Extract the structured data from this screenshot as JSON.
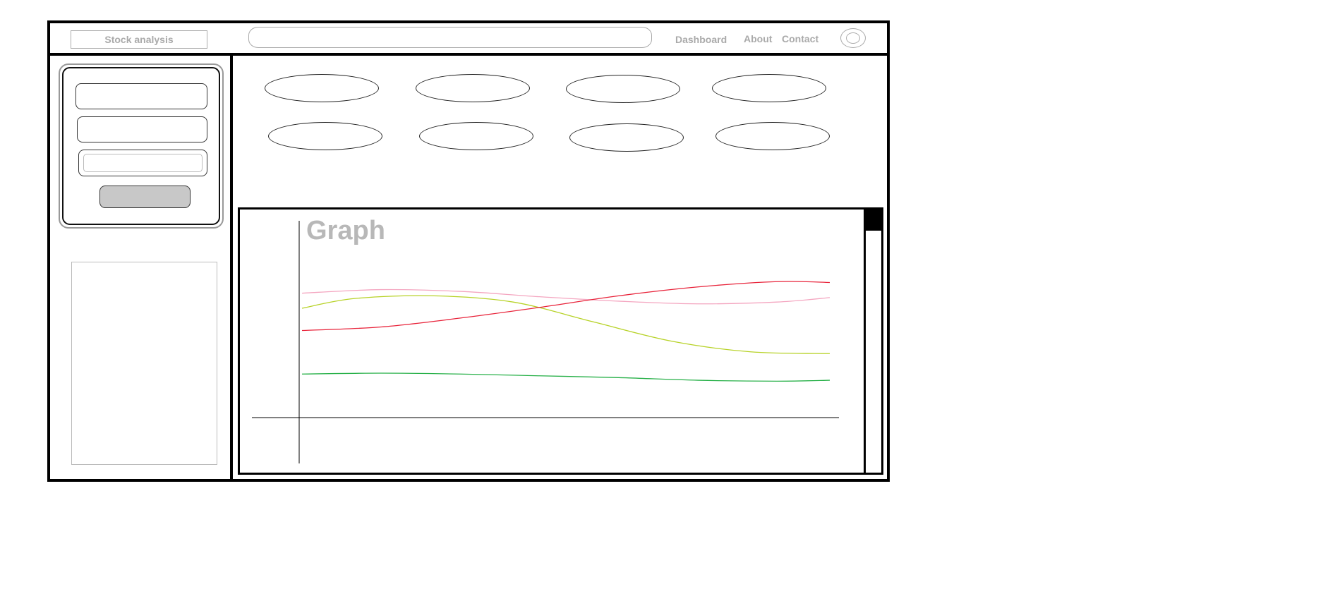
{
  "header": {
    "app_title": "Stock analysis",
    "nav": [
      "Dashboard",
      "About",
      "Contact"
    ]
  },
  "graph": {
    "title": "Graph"
  },
  "chart_data": {
    "type": "line",
    "title": "Graph",
    "xlabel": "",
    "ylabel": "",
    "xlim": [
      0,
      10
    ],
    "ylim": [
      0,
      10
    ],
    "grid": false,
    "series": [
      {
        "color": "#f4a6c0",
        "x": [
          0,
          1.5,
          3,
          4.5,
          6,
          7.5,
          9,
          10
        ],
        "y": [
          7.0,
          7.2,
          7.1,
          6.8,
          6.55,
          6.4,
          6.5,
          6.75
        ]
      },
      {
        "color": "#b7d227",
        "x": [
          0,
          1,
          2.5,
          4,
          5.5,
          7,
          8.5,
          10
        ],
        "y": [
          6.15,
          6.7,
          6.85,
          6.5,
          5.4,
          4.3,
          3.7,
          3.6
        ]
      },
      {
        "color": "#e8233a",
        "x": [
          0,
          1.5,
          3,
          4.5,
          6,
          7.5,
          9,
          10
        ],
        "y": [
          4.9,
          5.1,
          5.6,
          6.2,
          6.85,
          7.35,
          7.65,
          7.6
        ]
      },
      {
        "color": "#27b048",
        "x": [
          0,
          1.5,
          3,
          4.5,
          6,
          7.5,
          9,
          10
        ],
        "y": [
          2.45,
          2.5,
          2.45,
          2.35,
          2.25,
          2.1,
          2.05,
          2.1
        ]
      }
    ]
  },
  "colors": {
    "frame": "#000000",
    "muted_text": "#aaaaaa",
    "submit_button": "#c8c8c8"
  }
}
